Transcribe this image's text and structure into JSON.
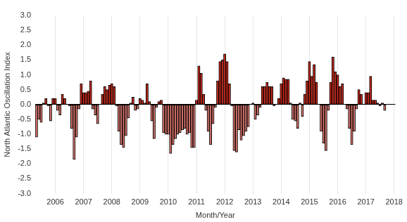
{
  "chart_data": {
    "type": "bar",
    "x_label": "Month/Year",
    "y_label": "North Atlantic Oscillation Index",
    "categories": [
      null,
      null,
      null,
      null,
      null,
      null,
      null,
      null,
      "2006",
      null,
      null,
      null,
      null,
      null,
      null,
      null,
      null,
      null,
      null,
      null,
      "2007",
      null,
      null,
      null,
      null,
      null,
      null,
      null,
      null,
      null,
      null,
      null,
      "2008",
      null,
      null,
      null,
      null,
      null,
      null,
      null,
      null,
      null,
      null,
      null,
      "2009",
      null,
      null,
      null,
      null,
      null,
      null,
      null,
      null,
      null,
      null,
      null,
      "2010",
      null,
      null,
      null,
      null,
      null,
      null,
      null,
      null,
      null,
      null,
      null,
      "2011",
      null,
      null,
      null,
      null,
      null,
      null,
      null,
      null,
      null,
      null,
      null,
      "2012",
      null,
      null,
      null,
      null,
      null,
      null,
      null,
      null,
      null,
      null,
      null,
      "2013",
      null,
      null,
      null,
      null,
      null,
      null,
      null,
      null,
      null,
      null,
      null,
      "2014",
      null,
      null,
      null,
      null,
      null,
      null,
      null,
      null,
      null,
      null,
      null,
      "2015",
      null,
      null,
      null,
      null,
      null,
      null,
      null,
      null,
      null,
      null,
      null,
      "2016",
      null,
      null,
      null,
      null,
      null,
      null,
      null,
      null,
      null,
      null,
      null,
      "2017",
      null,
      null,
      null,
      null,
      null,
      null,
      null,
      null,
      null,
      null,
      null,
      "2018"
    ],
    "values": [
      -1.1,
      -0.5,
      -0.6,
      0.05,
      0.2,
      -0.05,
      -0.55,
      0.2,
      0.2,
      -0.2,
      -0.35,
      0.35,
      0.2,
      0,
      -0.05,
      -0.8,
      -1.85,
      -1.1,
      -0.15,
      0.7,
      0.4,
      0.4,
      0.45,
      0.8,
      -0.15,
      -0.35,
      -0.65,
      0,
      0.35,
      0.6,
      0.5,
      0.65,
      0.7,
      0.6,
      -0.05,
      -0.9,
      -1.35,
      -1.45,
      -1.05,
      -0.45,
      0.05,
      0.25,
      -0.2,
      -0.15,
      0.2,
      0.15,
      0.05,
      0.7,
      0.1,
      -0.55,
      -1.15,
      -0.1,
      0.1,
      0.15,
      -0.95,
      -1.0,
      -1.0,
      -1.65,
      -1.35,
      -1.15,
      -1.0,
      -0.95,
      -0.85,
      -0.8,
      -1.0,
      -0.95,
      -1.45,
      -1.45,
      0.15,
      1.3,
      1.05,
      0.35,
      -0.2,
      -0.9,
      -1.35,
      -0.65,
      -0.1,
      0.8,
      1.45,
      1.5,
      1.7,
      1.45,
      0.7,
      -0.05,
      -1.55,
      -1.6,
      -0.85,
      -1.2,
      -1.05,
      -0.9,
      -0.75,
      0,
      0.05,
      -0.5,
      -0.35,
      -0.1,
      0.6,
      0.6,
      0.75,
      0.6,
      0.6,
      -0.05,
      0,
      0.2,
      0.7,
      0.9,
      0.85,
      0.85,
      0.05,
      -0.5,
      -0.55,
      -0.8,
      0.05,
      -0.4,
      0.35,
      0.8,
      1.45,
      0.95,
      1.35,
      0.75,
      0,
      -0.9,
      -1.3,
      -1.55,
      -0.2,
      0.75,
      1.6,
      1.1,
      1.0,
      0.6,
      0.7,
      0,
      -0.15,
      -0.8,
      -1.35,
      -0.9,
      -0.15,
      0.5,
      0.35,
      0,
      0.4,
      0.4,
      0.95,
      0.15,
      0.15,
      0.05,
      -0.05,
      0.05,
      -0.2,
      null,
      null,
      null,
      null
    ],
    "colors": [
      "#cf6f67",
      "#cf6f67",
      "#cf6f67",
      "#c0281c",
      "#c0281c",
      "#cf6f67",
      "#cf6f67",
      "#c0281c",
      "#c0281c",
      "#cf6f67",
      "#cf6f67",
      "#c0281c",
      "#c0281c",
      "#c0281c",
      "#cf6f67",
      "#cf6f67",
      "#cf6f67",
      "#cf6f67",
      "#cf6f67",
      "#c0281c",
      "#c0281c",
      "#c0281c",
      "#c0281c",
      "#c0281c",
      "#cf6f67",
      "#cf6f67",
      "#cf6f67",
      "#c0281c",
      "#c0281c",
      "#c0281c",
      "#c0281c",
      "#c0281c",
      "#c0281c",
      "#c0281c",
      "#cf6f67",
      "#cf6f67",
      "#cf6f67",
      "#cf6f67",
      "#cf6f67",
      "#cf6f67",
      "#c0281c",
      "#c0281c",
      "#cf6f67",
      "#cf6f67",
      "#c0281c",
      "#c0281c",
      "#c0281c",
      "#c0281c",
      "#c0281c",
      "#cf6f67",
      "#cf6f67",
      "#cf6f67",
      "#c0281c",
      "#c0281c",
      "#cf6f67",
      "#cf6f67",
      "#cf6f67",
      "#cf6f67",
      "#cf6f67",
      "#cf6f67",
      "#cf6f67",
      "#cf6f67",
      "#cf6f67",
      "#cf6f67",
      "#cf6f67",
      "#cf6f67",
      "#cf6f67",
      "#cf6f67",
      "#c0281c",
      "#c0281c",
      "#c0281c",
      "#c0281c",
      "#cf6f67",
      "#cf6f67",
      "#cf6f67",
      "#cf6f67",
      "#cf6f67",
      "#c0281c",
      "#c0281c",
      "#c0281c",
      "#c0281c",
      "#c0281c",
      "#c0281c",
      "#cf6f67",
      "#cf6f67",
      "#cf6f67",
      "#cf6f67",
      "#cf6f67",
      "#cf6f67",
      "#cf6f67",
      "#cf6f67",
      "#c0281c",
      "#c0281c",
      "#cf6f67",
      "#cf6f67",
      "#cf6f67",
      "#c0281c",
      "#c0281c",
      "#c0281c",
      "#c0281c",
      "#c0281c",
      "#cf6f67",
      "#c0281c",
      "#c0281c",
      "#c0281c",
      "#c0281c",
      "#c0281c",
      "#c0281c",
      "#c0281c",
      "#cf6f67",
      "#cf6f67",
      "#cf6f67",
      "#c0281c",
      "#cf6f67",
      "#c0281c",
      "#c0281c",
      "#c0281c",
      "#c0281c",
      "#c0281c",
      "#c0281c",
      "#c0281c",
      "#cf6f67",
      "#cf6f67",
      "#cf6f67",
      "#cf6f67",
      "#c0281c",
      "#c0281c",
      "#c0281c",
      "#c0281c",
      "#c0281c",
      "#c0281c",
      "#c0281c",
      "#cf6f67",
      "#cf6f67",
      "#cf6f67",
      "#cf6f67",
      "#cf6f67",
      "#c0281c",
      "#c0281c",
      "#c0281c",
      "#c0281c",
      "#c0281c",
      "#c0281c",
      "#c0281c",
      "#c0281c",
      "#c0281c",
      "#cf6f67",
      "#c0281c",
      "#cf6f67",
      "#c0281c",
      "#c0281c",
      "#c0281c",
      "#c0281c"
    ],
    "ylim": [
      -3,
      3
    ],
    "yticks": [
      {
        "value": -3,
        "label": "-3.0"
      },
      -2.5,
      {
        "value": -2,
        "label": "-2.0"
      },
      -1.5,
      {
        "value": -1,
        "label": "-1.0"
      },
      -0.5,
      {
        "value": 0,
        "label": "0.0"
      },
      0.5,
      {
        "value": 1,
        "label": "1.0"
      },
      1.5,
      {
        "value": 2,
        "label": "2.0"
      },
      2.5,
      {
        "value": 3,
        "label": "3.0"
      }
    ],
    "grid": true
  }
}
